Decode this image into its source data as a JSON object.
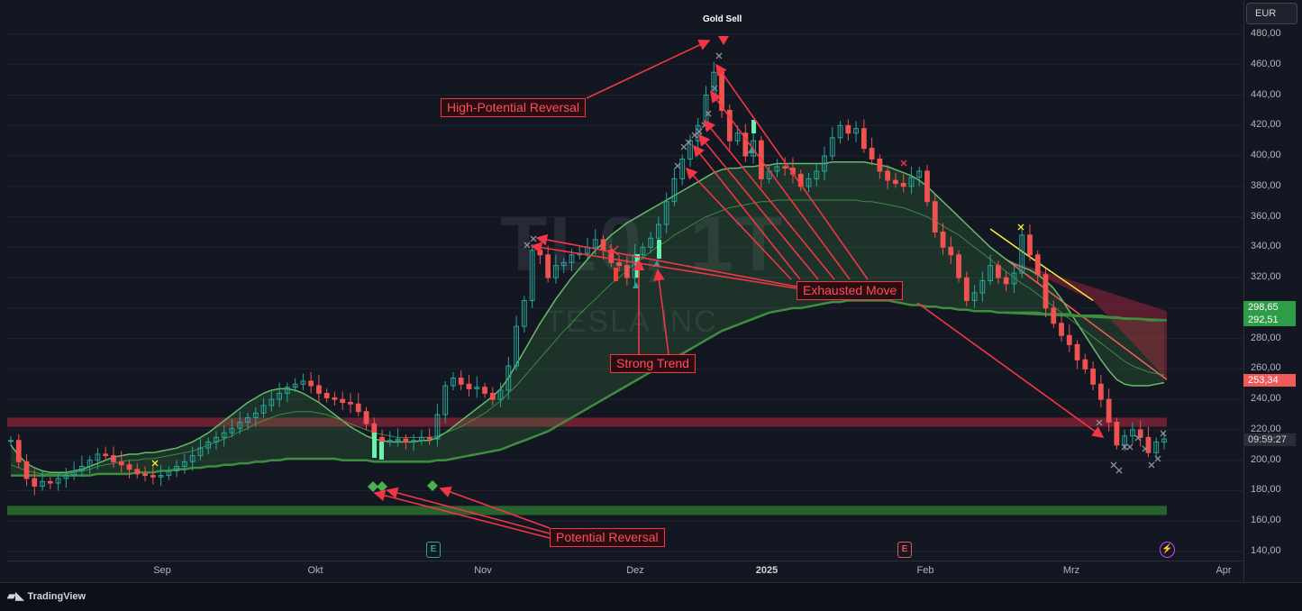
{
  "app": {
    "brand": "TradingView",
    "currency_button": "EUR"
  },
  "watermark": {
    "symbol": "TL0, 1T",
    "name": "TESLA INC"
  },
  "price_badges": {
    "upper": "298,65",
    "middle": "292,51",
    "lower": "253,34",
    "current_price": "",
    "countdown": "09:59:27"
  },
  "colors": {
    "bull": "#26a69a",
    "bear": "#ef5350",
    "ribbon": "#4caf50",
    "resistance": "#b2283f",
    "support": "#2e7d32",
    "callout": "#f23645",
    "badge_green": "#2e9d48",
    "badge_red": "#f05a5a"
  },
  "annotations": {
    "signal": "Gold Sell",
    "high_potential": "High-Potential Reversal",
    "exhausted": "Exhausted Move",
    "strong_trend": "Strong Trend",
    "potential_reversal": "Potential Reversal"
  },
  "events": [
    {
      "icon": "earnings-icon",
      "label": "E"
    },
    {
      "icon": "earnings-icon",
      "label": "E"
    },
    {
      "icon": "split-icon",
      "label": "⚡"
    }
  ],
  "chart_data": {
    "type": "candlestick",
    "title": "",
    "xlabel": "",
    "ylabel": "",
    "ylim": [
      130,
      490
    ],
    "y_ticks": [
      140,
      160,
      180,
      200,
      220,
      240,
      260,
      280,
      300,
      320,
      340,
      360,
      380,
      400,
      420,
      440,
      460,
      480
    ],
    "y_tick_labels": [
      "140,00",
      "160,00",
      "180,00",
      "200,00",
      "220,00",
      "240,00",
      "260,00",
      "280,00",
      "300,00",
      "320,00",
      "340,00",
      "360,00",
      "380,00",
      "400,00",
      "420,00",
      "440,00",
      "460,00",
      "480,00"
    ],
    "x_tick_labels": [
      "Sep",
      "Okt",
      "Nov",
      "Dez",
      "2025",
      "Feb",
      "Mrz",
      "Apr"
    ],
    "close": [
      213,
      199,
      188,
      183,
      186,
      185,
      188,
      190,
      193,
      196,
      200,
      204,
      203,
      199,
      197,
      194,
      191,
      190,
      189,
      190,
      193,
      196,
      199,
      203,
      208,
      212,
      215,
      218,
      221,
      225,
      228,
      231,
      236,
      240,
      244,
      248,
      250,
      252,
      249,
      244,
      241,
      240,
      238,
      237,
      232,
      224,
      215,
      212,
      213,
      214,
      212,
      213,
      215,
      214,
      230,
      249,
      254,
      250,
      247,
      248,
      244,
      240,
      246,
      262,
      288,
      305,
      338,
      335,
      320,
      328,
      330,
      335,
      336,
      340,
      345,
      338,
      330,
      328,
      320,
      335,
      340,
      346,
      355,
      370,
      385,
      398,
      410,
      420,
      440,
      455,
      430,
      410,
      415,
      400,
      410,
      385,
      390,
      393,
      392,
      388,
      380,
      385,
      390,
      400,
      412,
      420,
      415,
      418,
      405,
      398,
      390,
      384,
      382,
      380,
      386,
      390,
      370,
      350,
      340,
      335,
      320,
      305,
      310,
      318,
      328,
      320,
      316,
      323,
      348,
      335,
      322,
      300,
      290,
      282,
      276,
      266,
      260,
      250,
      240,
      225,
      210,
      216,
      220,
      215,
      205,
      212,
      214
    ],
    "resistance_zone": [
      222,
      228
    ],
    "support_zone": [
      164,
      170
    ],
    "ribbon": {
      "fast": [
        210,
        203,
        198,
        195,
        193,
        192,
        192,
        192,
        193,
        194,
        196,
        198,
        200,
        202,
        203,
        204,
        204,
        205,
        205,
        206,
        207,
        208,
        210,
        212,
        215,
        218,
        222,
        226,
        230,
        234,
        238,
        241,
        244,
        246,
        247,
        247,
        246,
        244,
        241,
        238,
        234,
        230,
        226,
        222,
        219,
        216,
        214,
        213,
        212,
        212,
        212,
        212,
        213,
        213,
        215,
        218,
        222,
        226,
        230,
        234,
        238,
        242,
        247,
        254,
        263,
        272,
        281,
        290,
        298,
        306,
        313,
        320,
        326,
        332,
        338,
        343,
        348,
        352,
        356,
        359,
        362,
        365,
        368,
        371,
        374,
        377,
        380,
        383,
        386,
        389,
        391,
        392,
        392,
        393,
        393,
        394,
        394,
        395,
        395,
        395,
        395,
        395,
        395,
        395,
        396,
        396,
        396,
        396,
        396,
        395,
        394,
        393,
        391,
        389,
        387,
        384,
        380,
        375,
        370,
        365,
        360,
        355,
        350,
        345,
        340,
        336,
        332,
        329,
        327,
        325,
        322,
        318,
        313,
        306,
        298,
        290,
        282,
        274,
        266,
        259,
        253,
        250,
        249,
        249,
        249,
        250,
        251
      ],
      "mid": [
        197,
        195,
        193,
        192,
        191,
        191,
        191,
        191,
        192,
        193,
        194,
        196,
        197,
        198,
        199,
        200,
        200,
        201,
        201,
        202,
        203,
        204,
        205,
        206,
        208,
        210,
        212,
        214,
        216,
        219,
        221,
        224,
        226,
        228,
        230,
        231,
        232,
        232,
        232,
        231,
        230,
        228,
        226,
        224,
        222,
        220,
        218,
        217,
        216,
        215,
        215,
        215,
        215,
        215,
        216,
        218,
        220,
        222,
        225,
        228,
        231,
        235,
        239,
        244,
        249,
        255,
        261,
        267,
        273,
        279,
        285,
        290,
        296,
        301,
        306,
        311,
        316,
        320,
        325,
        329,
        333,
        337,
        341,
        344,
        348,
        351,
        354,
        357,
        360,
        362,
        364,
        366,
        367,
        368,
        369,
        370,
        370,
        371,
        371,
        371,
        371,
        371,
        371,
        371,
        371,
        371,
        371,
        371,
        370,
        370,
        369,
        368,
        367,
        366,
        364,
        362,
        360,
        357,
        354,
        351,
        348,
        344,
        340,
        336,
        332,
        328,
        324,
        320,
        316,
        313,
        309,
        305,
        301,
        297,
        293,
        289,
        285,
        281,
        277,
        273,
        269,
        265,
        262,
        260,
        258,
        257,
        256
      ],
      "slow": [
        190,
        190,
        190,
        190,
        190,
        190,
        190,
        190,
        190,
        190,
        190,
        191,
        191,
        191,
        191,
        191,
        192,
        192,
        192,
        193,
        193,
        194,
        194,
        195,
        195,
        196,
        196,
        197,
        197,
        198,
        198,
        199,
        199,
        200,
        200,
        201,
        201,
        201,
        201,
        201,
        201,
        201,
        200,
        200,
        200,
        200,
        199,
        199,
        199,
        199,
        199,
        199,
        199,
        199,
        200,
        200,
        201,
        202,
        203,
        204,
        205,
        206,
        207,
        209,
        211,
        213,
        215,
        217,
        219,
        222,
        225,
        228,
        231,
        234,
        237,
        240,
        243,
        246,
        249,
        252,
        255,
        258,
        261,
        264,
        267,
        270,
        273,
        276,
        279,
        282,
        285,
        287,
        289,
        291,
        293,
        295,
        297,
        298,
        299,
        300,
        300,
        301,
        302,
        303,
        304,
        304,
        305,
        305,
        305,
        305,
        305,
        305,
        304,
        303,
        302,
        302,
        301,
        301,
        300,
        300,
        299,
        299,
        298,
        298,
        298,
        297,
        297,
        297,
        297,
        297,
        297,
        296,
        296,
        296,
        296,
        295,
        295,
        295,
        295,
        294,
        294,
        293,
        293,
        293,
        292,
        292,
        292
      ]
    }
  }
}
